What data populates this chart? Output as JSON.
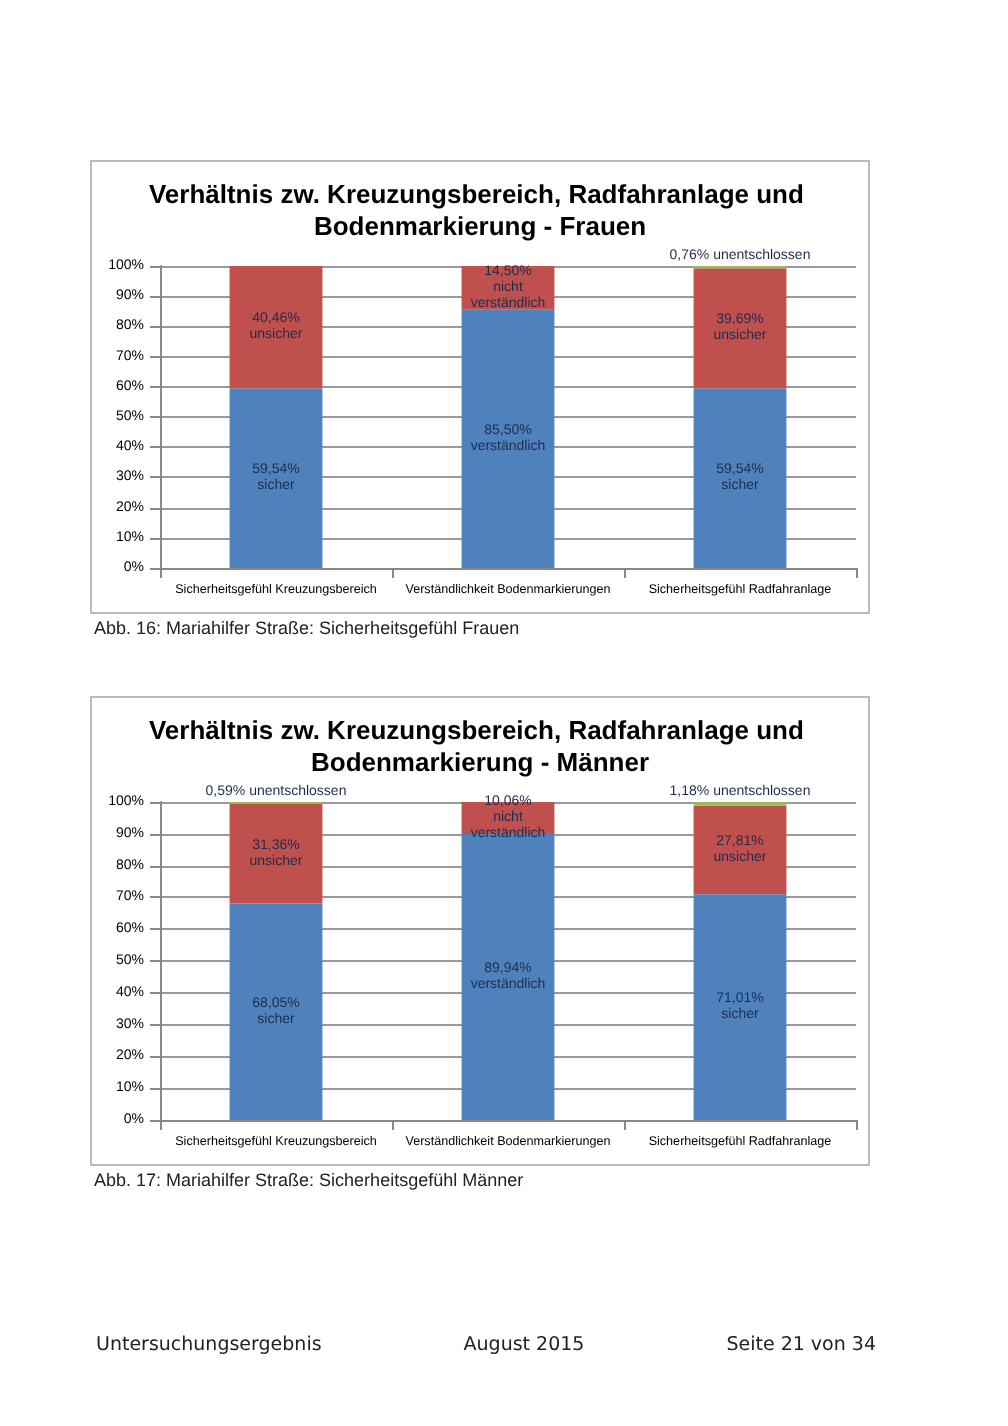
{
  "chart_data": [
    {
      "type": "bar",
      "title": "Verhältnis zw. Kreuzungsbereich, Radfahranlage und Bodenmarkierung - Frauen",
      "categories": [
        "Sicherheitsgefühl Kreuzungsbereich",
        "Verständlichkeit Bodenmarkierungen",
        "Sicherheitsgefühl Radfahranlage"
      ],
      "stacked": true,
      "grid": "y",
      "series": [
        {
          "color": "#4f81bd",
          "values": [
            59.54,
            85.5,
            59.54
          ],
          "value_labels": [
            "59,54%\nsicher",
            "85,50%\nverständlich",
            "59,54%\nsicher"
          ]
        },
        {
          "color": "#c0504d",
          "values": [
            40.46,
            14.5,
            39.69
          ],
          "value_labels": [
            "40,46%\nunsicher",
            "14,50%\nnicht\nverständlich",
            "39,69%\nunsicher"
          ]
        },
        {
          "color": "#9bbb59",
          "values": [
            null,
            null,
            0.76
          ],
          "value_labels": [
            null,
            null,
            "0,76% unentschlossen"
          ]
        }
      ],
      "ylim": [
        0,
        100
      ],
      "yticks": [
        {
          "value": 0,
          "label": "0%"
        },
        {
          "value": 10,
          "label": "10%"
        },
        {
          "value": 20,
          "label": "20%"
        },
        {
          "value": 30,
          "label": "30%"
        },
        {
          "value": 40,
          "label": "40%"
        },
        {
          "value": 50,
          "label": "50%"
        },
        {
          "value": 60,
          "label": "60%"
        },
        {
          "value": 70,
          "label": "70%"
        },
        {
          "value": 80,
          "label": "80%"
        },
        {
          "value": 90,
          "label": "90%"
        },
        {
          "value": 100,
          "label": "100%"
        }
      ],
      "annotations": [
        "Abb. 16: Mariahilfer Straße: Sicherheitsgefühl Frauen"
      ]
    },
    {
      "type": "bar",
      "title": "Verhältnis zw. Kreuzungsbereich, Radfahranlage und Bodenmarkierung - Männer",
      "categories": [
        "Sicherheitsgefühl Kreuzungsbereich",
        "Verständlichkeit Bodenmarkierungen",
        "Sicherheitsgefühl Radfahranlage"
      ],
      "stacked": true,
      "grid": "y",
      "series": [
        {
          "color": "#4f81bd",
          "values": [
            68.05,
            89.94,
            71.01
          ],
          "value_labels": [
            "68,05%\nsicher",
            "89,94%\nverständlich",
            "71,01%\nsicher"
          ]
        },
        {
          "color": "#c0504d",
          "values": [
            31.36,
            10.06,
            27.81
          ],
          "value_labels": [
            "31,36%\nunsicher",
            "10,06%\nnicht\nverständlich",
            "27,81%\nunsicher"
          ]
        },
        {
          "color": "#9bbb59",
          "values": [
            0.59,
            null,
            1.18
          ],
          "value_labels": [
            "0,59% unentschlossen",
            null,
            "1,18% unentschlossen"
          ]
        }
      ],
      "ylim": [
        0,
        100
      ],
      "yticks": [
        {
          "value": 0,
          "label": "0%"
        },
        {
          "value": 10,
          "label": "10%"
        },
        {
          "value": 20,
          "label": "20%"
        },
        {
          "value": 30,
          "label": "30%"
        },
        {
          "value": 40,
          "label": "40%"
        },
        {
          "value": 50,
          "label": "50%"
        },
        {
          "value": 60,
          "label": "60%"
        },
        {
          "value": 70,
          "label": "70%"
        },
        {
          "value": 80,
          "label": "80%"
        },
        {
          "value": 90,
          "label": "90%"
        },
        {
          "value": 100,
          "label": "100%"
        }
      ],
      "annotations": [
        "Abb. 17: Mariahilfer Straße: Sicherheitsgefühl Männer",
        "Untersuchungsergebnis",
        "August 2015",
        "Seite 21 von 34"
      ]
    }
  ]
}
